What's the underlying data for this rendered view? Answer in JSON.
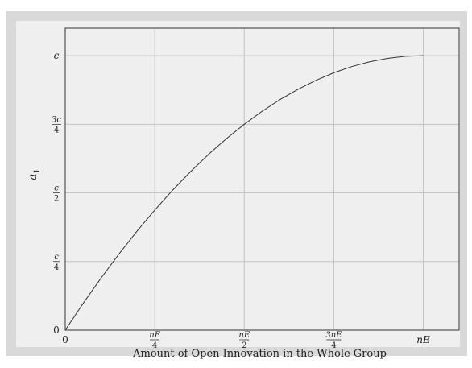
{
  "chart_data": {
    "type": "line",
    "xlabel": "Amount of Open Innovation in the Whole Group",
    "ylabel": "a",
    "ylabel_subscript": "1",
    "xlim": [
      0,
      1.1
    ],
    "ylim": [
      0,
      1.1
    ],
    "grid": true,
    "x_ticks": [
      {
        "value": 0,
        "num": "0",
        "den": ""
      },
      {
        "value": 0.25,
        "num": "nE",
        "den": "4"
      },
      {
        "value": 0.5,
        "num": "nE",
        "den": "2"
      },
      {
        "value": 0.75,
        "num": "3nE",
        "den": "4"
      },
      {
        "value": 1.0,
        "num": "nE",
        "den": ""
      }
    ],
    "y_ticks": [
      {
        "value": 0,
        "num": "0",
        "den": ""
      },
      {
        "value": 0.25,
        "num": "c",
        "den": "4"
      },
      {
        "value": 0.5,
        "num": "c",
        "den": "2"
      },
      {
        "value": 0.75,
        "num": "3c",
        "den": "4"
      },
      {
        "value": 1.0,
        "num": "c",
        "den": ""
      }
    ],
    "series": [
      {
        "x": [
          0,
          0.05,
          0.1,
          0.15,
          0.2,
          0.25,
          0.3,
          0.35,
          0.4,
          0.45,
          0.5,
          0.55,
          0.6,
          0.65,
          0.7,
          0.75,
          0.8,
          0.85,
          0.9,
          0.95,
          1.0
        ],
        "values": [
          0,
          0.0975,
          0.19,
          0.2775,
          0.36,
          0.4375,
          0.51,
          0.5775,
          0.64,
          0.6975,
          0.75,
          0.7975,
          0.84,
          0.8775,
          0.91,
          0.9375,
          0.96,
          0.9775,
          0.99,
          0.9975,
          1.0
        ],
        "color": "#333333"
      }
    ]
  }
}
